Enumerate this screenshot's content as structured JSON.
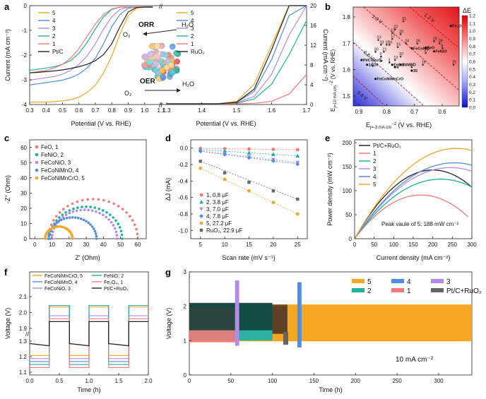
{
  "panel_labels": [
    "a",
    "b",
    "c",
    "d",
    "e",
    "f",
    "g"
  ],
  "colors": {
    "s1": "#f07a7a",
    "s2": "#1fb39b",
    "s3": "#b58ae8",
    "s4": "#4f8ee0",
    "s5": "#f5a623",
    "ref": "#222222",
    "ruo2": "#666666"
  },
  "chart_data": [
    {
      "id": "a",
      "type": "line",
      "title": "",
      "xlabel_left": "Potential (V vs. RHE)",
      "xlabel_right": "Potential (V vs. RHE)",
      "ylabel_left": "Current (mA cm⁻²)",
      "ylabel_right": "Current (mA cm⁻²)",
      "x_left": [
        0.3,
        0.35,
        0.4,
        0.45,
        0.5,
        0.55,
        0.6,
        0.65,
        0.7,
        0.75,
        0.8,
        0.85,
        0.9,
        0.95,
        1.0,
        1.05
      ],
      "x_right": [
        1.3,
        1.35,
        1.4,
        1.45,
        1.5,
        1.55,
        1.6,
        1.65,
        1.7
      ],
      "xlim_left": [
        0.3,
        1.1
      ],
      "xlim_right": [
        1.3,
        1.7
      ],
      "ylim_left": [
        -4,
        0
      ],
      "ylim_right": [
        0,
        20
      ],
      "xticks_left": [
        "0.3",
        "0.4",
        "0.5",
        "0.6",
        "0.7",
        "0.8",
        "0.9",
        "1.0",
        "1.1"
      ],
      "xticks_right": [
        "1.3",
        "1.4",
        "1.5",
        "1.6",
        "1.7"
      ],
      "yticks_left": [
        "0",
        "-1",
        "-2",
        "-3",
        "-4"
      ],
      "yticks_right": [
        "20",
        "16",
        "12",
        "8",
        "4",
        "0"
      ],
      "orr_series": [
        {
          "name": "5",
          "color_key": "s5",
          "values": [
            -3.9,
            -3.9,
            -3.9,
            -3.88,
            -3.85,
            -3.8,
            -3.7,
            -3.5,
            -3.2,
            -2.7,
            -2.0,
            -1.1,
            -0.35,
            -0.05,
            0,
            0
          ]
        },
        {
          "name": "4",
          "color_key": "s4",
          "values": [
            -3.2,
            -3.15,
            -3.1,
            -3.05,
            -3.0,
            -2.9,
            -2.75,
            -2.5,
            -2.1,
            -1.5,
            -0.8,
            -0.3,
            -0.05,
            0,
            0,
            0
          ]
        },
        {
          "name": "3",
          "color_key": "s3",
          "values": [
            -3.0,
            -2.95,
            -2.9,
            -2.85,
            -2.75,
            -2.6,
            -2.35,
            -2.0,
            -1.5,
            -0.9,
            -0.4,
            -0.1,
            0,
            0,
            0,
            0
          ]
        },
        {
          "name": "2",
          "color_key": "s2",
          "values": [
            -2.6,
            -2.55,
            -2.5,
            -2.45,
            -2.35,
            -2.2,
            -1.9,
            -1.45,
            -0.9,
            -0.4,
            -0.1,
            0,
            0,
            0,
            0,
            0
          ]
        },
        {
          "name": "1",
          "color_key": "s1",
          "values": [
            -2.7,
            -2.65,
            -2.6,
            -2.5,
            -2.35,
            -2.1,
            -1.7,
            -1.2,
            -0.7,
            -0.3,
            -0.08,
            0,
            0,
            0,
            0,
            0
          ]
        },
        {
          "name": "Pt/C",
          "color_key": "ref",
          "values": [
            -2.7,
            -2.68,
            -2.65,
            -2.62,
            -2.58,
            -2.52,
            -2.45,
            -2.35,
            -2.2,
            -1.95,
            -1.5,
            -0.8,
            -0.2,
            -0.02,
            0,
            0
          ]
        }
      ],
      "oer_series": [
        {
          "name": "5",
          "color_key": "s5",
          "values": [
            0,
            0,
            0,
            0.05,
            0.5,
            4,
            12,
            20,
            20
          ]
        },
        {
          "name": "4",
          "color_key": "s4",
          "values": [
            0,
            0,
            0,
            0.02,
            0.3,
            2.5,
            9,
            18,
            20
          ]
        },
        {
          "name": "3",
          "color_key": "s3",
          "values": [
            0,
            0,
            0,
            0,
            0.2,
            1.5,
            6,
            14,
            20
          ]
        },
        {
          "name": "2",
          "color_key": "s2",
          "values": [
            0,
            0,
            0,
            0,
            0.1,
            1,
            4,
            10,
            17
          ]
        },
        {
          "name": "1",
          "color_key": "s1",
          "values": [
            0,
            0,
            0,
            0,
            0,
            0.1,
            0.5,
            2,
            6
          ]
        },
        {
          "name": "RuO2",
          "color_key": "ref",
          "values": [
            0,
            0,
            0,
            0.01,
            0.3,
            3,
            11,
            20,
            20
          ]
        }
      ],
      "annotations": {
        "orr": "ORR",
        "oer": "OER",
        "o2_top": "O₂",
        "h2o_top": "H₂O",
        "o2_bot": "O₂",
        "h2o_bot": "H₂O"
      },
      "legend_left": [
        "5",
        "4",
        "3",
        "2",
        "1",
        "Pt/C"
      ],
      "legend_right": [
        "5",
        "4",
        "3",
        "2",
        "1",
        "RuO₂"
      ]
    },
    {
      "id": "b",
      "type": "heatmap",
      "xlabel": "Eⱼₘ − -3 mA cm⁻² (V vs. RHE)",
      "ylabel": "Eⱼₘ = 10 mA cm⁻² (V vs. RHE)",
      "xlabel_text": "E",
      "xlabel_sub": "j=-3 mA cm",
      "ylabel_text": "E",
      "ylabel_sub": "j=10 mA cm",
      "unit_tail": "(V vs. RHE)",
      "colorbar_title": "ΔE",
      "colorbar_ticks": [
        "1.2",
        "1.1",
        "1.0",
        "0.9",
        "0.8",
        "0.7",
        "0.6",
        "0.5",
        "0.4",
        "0.3",
        "0.2",
        "0.1",
        "0.0"
      ],
      "xticks": [
        "0.9",
        "0.8",
        "0.7",
        "0.6"
      ],
      "yticks": [
        "1.8",
        "1.7",
        "1.6",
        "1.5"
      ],
      "xlim": [
        0.93,
        0.55
      ],
      "ylim": [
        1.45,
        1.87
      ],
      "iso_lines": [
        "1.2 V",
        "1.0 V",
        "0.8 V",
        "0.6 V"
      ],
      "points": [
        {
          "label": "31",
          "x": 0.75,
          "y": 1.81
        },
        {
          "label": "22",
          "x": 0.78,
          "y": 1.775
        },
        {
          "label": "12",
          "x": 0.79,
          "y": 1.76
        },
        {
          "label": "20",
          "x": 0.76,
          "y": 1.755
        },
        {
          "label": "23",
          "x": 0.84,
          "y": 1.73
        },
        {
          "label": "17",
          "x": 0.79,
          "y": 1.735
        },
        {
          "label": "19",
          "x": 0.64,
          "y": 1.725
        },
        {
          "label": "33",
          "x": 0.83,
          "y": 1.71
        },
        {
          "label": "10",
          "x": 0.81,
          "y": 1.71
        },
        {
          "label": "16",
          "x": 0.8,
          "y": 1.71
        },
        {
          "label": "24",
          "x": 0.74,
          "y": 1.715
        },
        {
          "label": "26",
          "x": 0.7,
          "y": 1.715
        },
        {
          "label": "28",
          "x": 0.62,
          "y": 1.715
        },
        {
          "label": "8",
          "x": 0.61,
          "y": 1.695
        },
        {
          "label": "15",
          "x": 0.77,
          "y": 1.7
        },
        {
          "label": "30",
          "x": 0.85,
          "y": 1.68
        },
        {
          "label": "21",
          "x": 0.82,
          "y": 1.68
        },
        {
          "label": "27",
          "x": 0.67,
          "y": 1.675
        },
        {
          "label": "9",
          "x": 0.83,
          "y": 1.66
        },
        {
          "label": "32",
          "x": 0.76,
          "y": 1.66
        },
        {
          "label": "13",
          "x": 0.78,
          "y": 1.645
        },
        {
          "label": "2",
          "x": 0.83,
          "y": 1.64
        },
        {
          "label": "3",
          "x": 0.8,
          "y": 1.635
        },
        {
          "label": "18",
          "x": 0.68,
          "y": 1.625
        },
        {
          "label": "25",
          "x": 0.57,
          "y": 1.625
        },
        {
          "label": "7",
          "x": 0.86,
          "y": 1.62
        },
        {
          "label": "11",
          "x": 0.72,
          "y": 1.615
        }
      ],
      "named_points": [
        {
          "label": "Fe₃O₄",
          "x": 0.58,
          "y": 1.79,
          "color_key": "s5"
        },
        {
          "label": "FeO",
          "x": 0.67,
          "y": 1.698,
          "color_key": "s1"
        },
        {
          "label": "FeCoNiO",
          "x": 0.72,
          "y": 1.695,
          "color_key": "s3"
        },
        {
          "label": "FeNiO",
          "x": 0.64,
          "y": 1.682,
          "color_key": "s2"
        },
        {
          "label": "FeCoNiMnO",
          "x": 0.79,
          "y": 1.625,
          "color_key": "s4"
        },
        {
          "label": "FeCoNiMnCrO",
          "x": 0.85,
          "y": 1.565,
          "color_key": "s2"
        },
        {
          "label": "Pt/C+RuO₂",
          "x": 0.9,
          "y": 1.645,
          "color_key": "ref"
        },
        {
          "label": "14/26",
          "x": 0.88,
          "y": 1.625,
          "color_key": "ref"
        },
        {
          "label": "5",
          "x": 0.76,
          "y": 1.625,
          "color_key": "ref"
        },
        {
          "label": "4",
          "x": 0.78,
          "y": 1.615,
          "color_key": "ref"
        },
        {
          "label": "35",
          "x": 0.72,
          "y": 1.6,
          "color_key": "ref"
        }
      ]
    },
    {
      "id": "c",
      "type": "scatter",
      "xlabel": "Z' (Ohm)",
      "ylabel": "-Z'' (Ohm)",
      "xlim": [
        -3,
        65
      ],
      "ylim": [
        0,
        65
      ],
      "xticks": [
        "0",
        "10",
        "20",
        "30",
        "40",
        "50",
        "60"
      ],
      "yticks": [
        "60",
        "50",
        "40",
        "30",
        "20",
        "10",
        "0"
      ],
      "series": [
        {
          "name": "FeO, 1",
          "color_key": "s1",
          "center": 34,
          "radius": 26,
          "start": 8
        },
        {
          "name": "FeNiO, 2",
          "color_key": "s2",
          "center": 30,
          "radius": 21,
          "start": 8
        },
        {
          "name": "FeCoNiO, 3",
          "color_key": "s3",
          "center": 29,
          "radius": 19,
          "start": 9
        },
        {
          "name": "FeCoNiMnO, 4",
          "color_key": "s4",
          "center": 22,
          "radius": 14,
          "start": 8
        },
        {
          "name": "FeCoNiMnCrO, 5",
          "color_key": "s5",
          "center": 14,
          "radius": 8,
          "start": 6
        }
      ]
    },
    {
      "id": "d",
      "type": "scatter",
      "xlabel": "Scan rate (mV s⁻¹)",
      "ylabel": "ΔJ (mA)",
      "xlim": [
        3,
        27
      ],
      "ylim": [
        -1.1,
        0.1
      ],
      "xticks": [
        "5",
        "10",
        "15",
        "20",
        "25"
      ],
      "yticks": [
        "0.0",
        "-0.2",
        "-0.4",
        "-0.6",
        "-0.8",
        "-1.0"
      ],
      "x": [
        5,
        10,
        15,
        20,
        25
      ],
      "series": [
        {
          "name": "1, 0.8 μF",
          "color_key": "s1",
          "marker": "circle",
          "values": [
            -0.004,
            -0.008,
            -0.012,
            -0.016,
            -0.02
          ]
        },
        {
          "name": "2, 3.8 μF",
          "color_key": "s2",
          "marker": "triangle",
          "values": [
            -0.019,
            -0.038,
            -0.057,
            -0.076,
            -0.095
          ]
        },
        {
          "name": "3, 7.0 μF",
          "color_key": "s3",
          "marker": "tri-down",
          "values": [
            -0.035,
            -0.07,
            -0.105,
            -0.14,
            -0.175
          ]
        },
        {
          "name": "4, 7.8 μF",
          "color_key": "s4",
          "marker": "diamond",
          "values": [
            -0.039,
            -0.078,
            -0.117,
            -0.156,
            -0.195
          ]
        },
        {
          "name": "5, 27.2 μF",
          "color_key": "s5",
          "marker": "circle",
          "values": [
            -0.245,
            -0.38,
            -0.52,
            -0.66,
            -0.8
          ]
        },
        {
          "name": "RuO₂, 22.9 μF",
          "color_key": "ruo2",
          "marker": "square",
          "values": [
            -0.16,
            -0.3,
            -0.415,
            -0.52,
            -0.62
          ]
        }
      ]
    },
    {
      "id": "e",
      "type": "line",
      "xlabel": "Current density (mA cm⁻²)",
      "ylabel": "Power density (mW cm⁻²)",
      "xlim": [
        0,
        300
      ],
      "ylim": [
        0,
        200
      ],
      "xticks": [
        "0",
        "50",
        "100",
        "150",
        "200",
        "250",
        "300"
      ],
      "yticks": [
        "200",
        "150",
        "100",
        "50",
        "0"
      ],
      "annotation": "Peak vaule of 5: 188 mW cm⁻²",
      "series": [
        {
          "name": "Pt/C+RuO₂",
          "color_key": "ref",
          "max_x": 300,
          "peak_x": 200,
          "peak_y": 143
        },
        {
          "name": "1",
          "color_key": "s1",
          "max_x": 290,
          "peak_x": 170,
          "peak_y": 91
        },
        {
          "name": "2",
          "color_key": "s2",
          "max_x": 300,
          "peak_x": 220,
          "peak_y": 124
        },
        {
          "name": "3",
          "color_key": "s3",
          "max_x": 300,
          "peak_x": 245,
          "peak_y": 148
        },
        {
          "name": "4",
          "color_key": "s4",
          "max_x": 300,
          "peak_x": 255,
          "peak_y": 158
        },
        {
          "name": "5",
          "color_key": "s5",
          "max_x": 300,
          "peak_x": 260,
          "peak_y": 188
        }
      ]
    },
    {
      "id": "f",
      "type": "line",
      "xlabel": "Time (h)",
      "ylabel": "Voltage (V)",
      "xlim": [
        0,
        2.0
      ],
      "xticks": [
        "0.0",
        "0.5",
        "1.0",
        "1.5",
        "2.0"
      ],
      "yticks_top": [
        "2.1",
        "2.0",
        "1.9"
      ],
      "yticks_bottom": [
        "1.3",
        "1.2",
        "1.1"
      ],
      "legend": [
        "FeCoNiMnCrO, 5",
        "FeCoNiMnO, 4",
        "FeCoNiO, 3",
        "FeNiO, 2",
        "Fe₃O₄, 1",
        "Pt/C+RuO₂"
      ],
      "series": [
        {
          "name": "FeCoNiMnCrO, 5",
          "color_key": "s5",
          "charge": 2.05,
          "discharge": 1.21
        },
        {
          "name": "FeCoNiMnO, 4",
          "color_key": "s4",
          "charge": 2.06,
          "discharge": 1.17
        },
        {
          "name": "FeCoNiO, 3",
          "color_key": "s3",
          "charge": 1.99,
          "discharge": 1.19
        },
        {
          "name": "FeNiO, 2",
          "color_key": "s2",
          "charge": 2.06,
          "discharge": 1.15
        },
        {
          "name": "Fe₃O₄, 1",
          "color_key": "s1",
          "charge": 1.97,
          "discharge": 1.13
        },
        {
          "name": "Pt/C+RuO₂",
          "color_key": "ref",
          "charge": 1.95,
          "discharge": 1.29
        }
      ]
    },
    {
      "id": "g",
      "type": "area",
      "xlabel": "Time (h)",
      "ylabel": "Voltage (V)",
      "xlim": [
        0,
        340
      ],
      "ylim": [
        0,
        3
      ],
      "xticks": [
        "0",
        "50",
        "100",
        "150",
        "200",
        "250",
        "300"
      ],
      "yticks": [
        "3",
        "2",
        "1",
        "0"
      ],
      "annotation": "10 mA cm⁻²",
      "legend": [
        "5",
        "4",
        "3",
        "2",
        "1",
        "Pt/C+RuO₂"
      ],
      "series": [
        {
          "name": "5",
          "color_key": "s5",
          "end": 340,
          "top": 2.05,
          "bottom": 0.98
        },
        {
          "name": "4",
          "color_key": "s4",
          "end": 135,
          "top": 2.05,
          "bottom": 1.05
        },
        {
          "name": "3",
          "color_key": "s3",
          "end": 60,
          "top": 2.05,
          "bottom": 1.05
        },
        {
          "name": "2",
          "color_key": "s2",
          "end": 100,
          "top": 2.05,
          "bottom": 1.05
        },
        {
          "name": "1",
          "color_key": "s1",
          "end": 55,
          "top": 2.0,
          "bottom": 0.95
        },
        {
          "name": "Pt/C+RuO₂",
          "color_key": "ruo2",
          "end": 118,
          "top": 2.0,
          "bottom": 1.2
        }
      ]
    }
  ]
}
